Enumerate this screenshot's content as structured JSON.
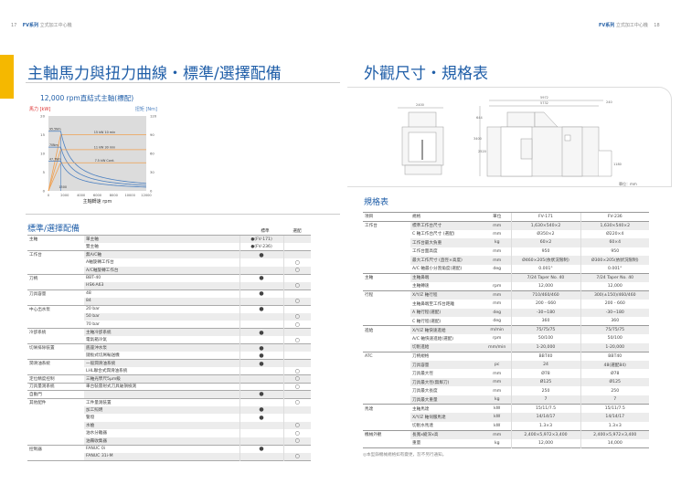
{
  "left_header": {
    "page": "17",
    "series": "FV系列",
    "subtitle": "立式加工中心機"
  },
  "right_header": {
    "page": "18",
    "series": "FV系列",
    "subtitle": "立式加工中心機"
  },
  "colors": {
    "accent_blue": "#1f5ea8",
    "accent_yellow": "#f5b800",
    "power_orange": "#f0a050",
    "torque_blue": "#4a7fc0"
  },
  "left_title": "主軸馬力與扭力曲線・標準/選擇配備",
  "chart_subtitle": "12,000 rpm直結式主軸(標配)",
  "chart_data": {
    "type": "line",
    "ylabel": "馬力 [kW]",
    "y2label": "扭矩 [Nm]",
    "xlabel": "主軸轉速 rpm",
    "xlim": [
      0,
      12000
    ],
    "ylim": [
      0,
      20
    ],
    "y2lim": [
      0,
      120
    ],
    "xticks": [
      "0",
      "2000",
      "4000",
      "6000",
      "8000",
      "10000",
      "12000"
    ],
    "yticks": [
      "0",
      "5",
      "10",
      "15",
      "20"
    ],
    "y2ticks": [
      "0",
      "30",
      "60",
      "90",
      "120"
    ],
    "base_speed": 1500,
    "base_speed_label": "1500",
    "grid": false,
    "series": [
      {
        "name": "15 kW 10 min",
        "type": "power",
        "kw": 15,
        "torque_label": "95.5Nm"
      },
      {
        "name": "11 kW 30 min",
        "type": "power",
        "kw": 11,
        "torque_label": "70Nm"
      },
      {
        "name": "7.5 kW Cont.",
        "type": "power",
        "kw": 7.5,
        "torque_label": "47.7Nm"
      }
    ]
  },
  "options": {
    "title": "標準/選擇配備",
    "col_standard": "標準",
    "col_option": "選配",
    "std_mark": "●",
    "opt_mark": "○",
    "rows": [
      {
        "cat": "主軸",
        "item": "單主軸",
        "std": "●(FV-171)",
        "opt": ""
      },
      {
        "cat": "",
        "item": "雙主軸",
        "std": "●(FV-236)",
        "opt": ""
      },
      {
        "cat": "工作台",
        "item": "無A/C軸",
        "std": "●",
        "opt": ""
      },
      {
        "cat": "",
        "item": "A軸旋轉工作台",
        "std": "",
        "opt": "○"
      },
      {
        "cat": "",
        "item": "A/C軸旋轉工作台",
        "std": "",
        "opt": "○"
      },
      {
        "cat": "刀柄",
        "item": "BBT-40",
        "std": "●",
        "opt": ""
      },
      {
        "cat": "",
        "item": "HSK-A63",
        "std": "",
        "opt": "○"
      },
      {
        "cat": "刀具容量",
        "item": "48",
        "std": "●",
        "opt": ""
      },
      {
        "cat": "",
        "item": "84",
        "std": "",
        "opt": "○"
      },
      {
        "cat": "中心出水泵",
        "item": "20 bar",
        "std": "●",
        "opt": ""
      },
      {
        "cat": "",
        "item": "50 bar",
        "std": "",
        "opt": "○"
      },
      {
        "cat": "",
        "item": "70 bar",
        "std": "",
        "opt": "○"
      },
      {
        "cat": "冷卻系統",
        "item": "主軸冷卻系統",
        "std": "●",
        "opt": ""
      },
      {
        "cat": "",
        "item": "電氣箱冷氣",
        "std": "",
        "opt": "○"
      },
      {
        "cat": "切屑排除裝置",
        "item": "底座沖水泵",
        "std": "●",
        "opt": ""
      },
      {
        "cat": "",
        "item": "鏈板式切屑輸送機",
        "std": "●",
        "opt": ""
      },
      {
        "cat": "潤滑油系統",
        "item": "一般潤滑油系統",
        "std": "●",
        "opt": ""
      },
      {
        "cat": "",
        "item": "LHL聯合式潤滑油系統",
        "std": "",
        "opt": "○"
      },
      {
        "cat": "定位精度控制",
        "item": "三軸光學尺5μm級",
        "std": "",
        "opt": "○"
      },
      {
        "cat": "刀具量測系統",
        "item": "車台裝雷射式刀具破損檢測",
        "std": "",
        "opt": "○"
      },
      {
        "cat": "自動門",
        "item": "",
        "std": "●",
        "opt": ""
      },
      {
        "cat": "其他配件",
        "item": "工件量測裝置",
        "std": "",
        "opt": "○"
      },
      {
        "cat": "",
        "item": "加工照明",
        "std": "●",
        "opt": ""
      },
      {
        "cat": "",
        "item": "警燈",
        "std": "●",
        "opt": ""
      },
      {
        "cat": "",
        "item": "水槍",
        "std": "",
        "opt": "○"
      },
      {
        "cat": "",
        "item": "油水分離器",
        "std": "",
        "opt": "○"
      },
      {
        "cat": "",
        "item": "油霧收集器",
        "std": "",
        "opt": "○"
      },
      {
        "cat": "控制器",
        "item": "FANUC 0i",
        "std": "●",
        "opt": ""
      },
      {
        "cat": "",
        "item": "FANUC 31i-M",
        "std": "",
        "opt": "○"
      }
    ]
  },
  "right_title": "外觀尺寸・規格表",
  "drawing": {
    "front_width": "2400",
    "front_inner": "(W)",
    "total_length": "5972",
    "body_length": "5732",
    "extra": "240",
    "height": "3400",
    "height2": "2520",
    "top": "644",
    "conveyor": "1180",
    "unit": "單位：mm"
  },
  "spec": {
    "title": "規格表",
    "headers": [
      "項目",
      "規格",
      "單位",
      "FV-171",
      "FV-236"
    ],
    "rows": [
      [
        "工作台",
        "標準工作台尺寸",
        "mm",
        "1,630×540×2",
        "1,630×540×2"
      ],
      [
        "",
        "C 軸工作台尺寸 (選配)",
        "mm",
        "Ø350×2",
        "Ø220×4"
      ],
      [
        "",
        "工作台最大負重",
        "kg",
        "60×2",
        "60×4"
      ],
      [
        "",
        "工作台面高度",
        "mm",
        "950",
        "950"
      ],
      [
        "",
        "最大工作尺寸 (直徑×高度)",
        "mm",
        "Ø460×205(依狀況限制)",
        "Ø300×205(依狀況限制)"
      ],
      [
        "",
        "A/C 軸最小分割角度(選配)",
        "deg",
        "0.001°",
        "0.001°"
      ],
      [
        "主軸",
        "主軸鼻端",
        "",
        "7/24 Taper No. 40",
        "7/24 Taper No. 40"
      ],
      [
        "",
        "主軸轉速",
        "rpm",
        "12,000",
        "12,000"
      ],
      [
        "行程",
        "X/Y/Z 軸行程",
        "mm",
        "710/460/460",
        "300(±150)/460/460"
      ],
      [
        "",
        "主軸鼻端至工作台距離",
        "mm",
        "200 - 660",
        "200 - 660"
      ],
      [
        "",
        "A 軸行程(選配)",
        "deg",
        "-30~180",
        "-30~180"
      ],
      [
        "",
        "C 軸行程(選配)",
        "deg",
        "360",
        "360"
      ],
      [
        "進給",
        "X/Y/Z 軸快速進給",
        "m/min",
        "75/75/75",
        "75/75/75"
      ],
      [
        "",
        "A/C 軸快速進給(選配)",
        "rpm",
        "50/100",
        "50/100"
      ],
      [
        "",
        "切削進給",
        "mm/min",
        "1-20,000",
        "1-20,000"
      ],
      [
        "ATC",
        "刀柄規格",
        "",
        "BBT40",
        "BBT40"
      ],
      [
        "",
        "刀具容量",
        "pc",
        "24",
        "48(選配84)"
      ],
      [
        "",
        "刀具最大徑",
        "mm",
        "Ø78",
        "Ø78"
      ],
      [
        "",
        "刀具最大徑(無鄰刀)",
        "mm",
        "Ø125",
        "Ø125"
      ],
      [
        "",
        "刀具最大長度",
        "mm",
        "250",
        "250"
      ],
      [
        "",
        "刀具最大重量",
        "kg",
        "7",
        "7"
      ],
      [
        "馬達",
        "主軸馬達",
        "kW",
        "15/11/7.5",
        "15/11/7.5"
      ],
      [
        "",
        "X/Y/Z 軸伺服馬達",
        "kW",
        "14/14/17",
        "14/14/17"
      ],
      [
        "",
        "切削水馬達",
        "kW",
        "1.3×3",
        "1.3×3"
      ],
      [
        "機械外觀",
        "長寬x縱深x高",
        "mm",
        "2,400×5,972×3,400",
        "2,400×5,972×3,400"
      ],
      [
        "",
        "重量",
        "kg",
        "12,000",
        "14,000"
      ]
    ],
    "footnote": "◎本型錄機械規格如有變更，恕不另行通知。"
  }
}
